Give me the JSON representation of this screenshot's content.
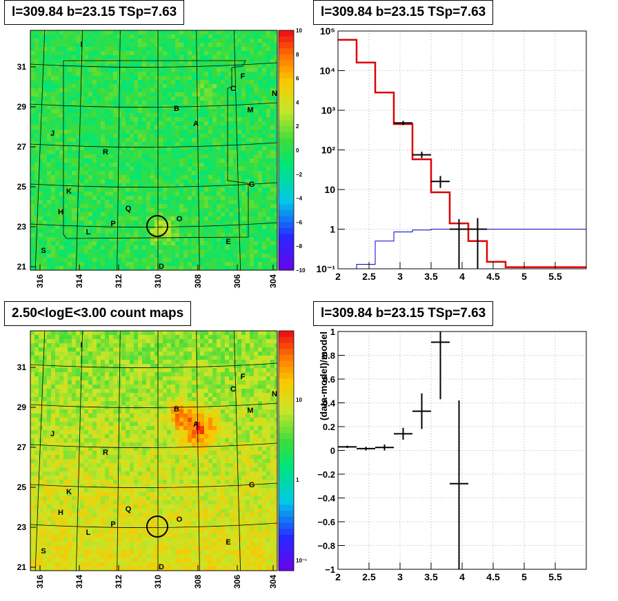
{
  "panels": {
    "tl_title": "l=309.84 b=23.15 TSp=7.63",
    "tr_title": "l=309.84 b=23.15 TSp=7.63",
    "bl_title": "2.50<logE<3.00 count maps",
    "br_title": "l=309.84 b=23.15 TSp=7.63"
  },
  "colors": {
    "model": "#dd0000",
    "data": "#000000",
    "line": "#0000cc"
  },
  "sky_map": {
    "x_ticks": [
      "316",
      "314",
      "312",
      "310",
      "308",
      "306",
      "304"
    ],
    "y_ticks": [
      "31",
      "29",
      "27",
      "25",
      "23",
      "21"
    ],
    "source_labels": [
      "I",
      "F",
      "C",
      "N",
      "B",
      "M",
      "A",
      "J",
      "R",
      "K",
      "G",
      "H",
      "Q",
      "O",
      "P",
      "L",
      "E",
      "S",
      "D"
    ],
    "colorbar_top": [
      "10",
      "8",
      "6",
      "4",
      "2",
      "0",
      "−2",
      "−4",
      "−6",
      "−8",
      "−10"
    ],
    "colorbar_bottom": [
      "10",
      "1",
      "10⁻¹"
    ]
  },
  "chart_data": [
    {
      "type": "line",
      "title": "l=309.84 b=23.15 TSp=7.63",
      "log_y": true,
      "xlim": [
        2,
        6
      ],
      "ylim": [
        0.1,
        100000
      ],
      "x_ticks": [
        "2",
        "2.5",
        "3",
        "3.5",
        "4",
        "4.5",
        "5",
        "5.5"
      ],
      "y_ticks": [
        "10⁵",
        "10⁴",
        "10³",
        "10²",
        "10",
        "1",
        "10⁻¹"
      ],
      "series": [
        {
          "style": "model-step",
          "bins": [
            [
              2.0,
              2.3,
              60000
            ],
            [
              2.3,
              2.6,
              16000
            ],
            [
              2.6,
              2.9,
              2800
            ],
            [
              2.9,
              3.2,
              450
            ],
            [
              3.2,
              3.5,
              58
            ],
            [
              3.5,
              3.8,
              8.5
            ],
            [
              3.8,
              4.1,
              1.4
            ],
            [
              4.1,
              4.4,
              0.5
            ],
            [
              4.4,
              4.7,
              0.15
            ],
            [
              4.7,
              6.0,
              0.11
            ]
          ]
        },
        {
          "style": "data-points",
          "points": [
            [
              3.05,
              480,
              0.15,
              420,
              540
            ],
            [
              3.35,
              75,
              0.15,
              62,
              90
            ],
            [
              3.65,
              16,
              0.15,
              11,
              22
            ],
            [
              3.95,
              1,
              0.15,
              0.1,
              1.8
            ],
            [
              4.25,
              1,
              0.15,
              0.1,
              1.9
            ]
          ]
        },
        {
          "style": "blue-step",
          "bins": [
            [
              2.0,
              2.3,
              0.1
            ],
            [
              2.3,
              2.6,
              0.13
            ],
            [
              2.6,
              2.9,
              0.5
            ],
            [
              2.9,
              3.2,
              0.85
            ],
            [
              3.2,
              3.5,
              0.95
            ],
            [
              3.5,
              3.8,
              1.0
            ],
            [
              3.8,
              6.0,
              1.0
            ]
          ]
        }
      ]
    },
    {
      "type": "scatter",
      "title": "l=309.84 b=23.15 TSp=7.63",
      "ylabel": "(data-model)/model",
      "xlim": [
        2,
        6
      ],
      "ylim": [
        -1,
        1
      ],
      "x_ticks": [
        "2",
        "2.5",
        "3",
        "3.5",
        "4",
        "4.5",
        "5",
        "5.5"
      ],
      "y_ticks": [
        "1",
        "0.8",
        "0.6",
        "0.4",
        "0.2",
        "0",
        "−0.2",
        "−0.4",
        "−0.6",
        "−0.8",
        "−1"
      ],
      "points": [
        [
          2.15,
          0.03,
          0.15,
          0.02,
          0.04
        ],
        [
          2.45,
          0.015,
          0.15,
          0.0,
          0.03
        ],
        [
          2.75,
          0.025,
          0.15,
          0.0,
          0.05
        ],
        [
          3.05,
          0.14,
          0.15,
          0.09,
          0.19
        ],
        [
          3.35,
          0.33,
          0.15,
          0.18,
          0.48
        ],
        [
          3.65,
          0.91,
          0.15,
          0.43,
          1.0
        ],
        [
          3.95,
          -0.28,
          0.15,
          -1.0,
          0.42
        ]
      ]
    }
  ]
}
